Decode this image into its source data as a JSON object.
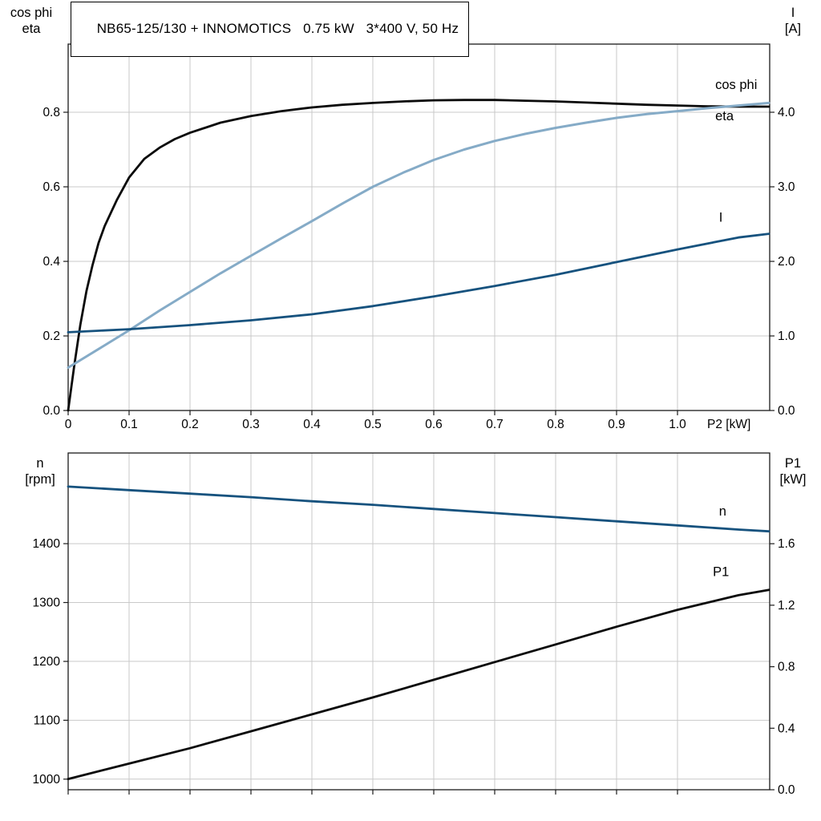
{
  "title": "NB65-125/130 + INNOMOTICS   0.75 kW   3*400 V, 50 Hz",
  "colors": {
    "black": "#0a0a0a",
    "light_blue": "#85abc7",
    "dark_blue": "#16527e",
    "grid": "#c9c9c9",
    "axis": "#1a1a1a"
  },
  "chart_data": [
    {
      "type": "line",
      "title": "NB65-125/130 + INNOMOTICS   0.75 kW   3*400 V, 50 Hz",
      "x_axis_label": "P2 [kW]",
      "x_range": [
        0,
        1.1513
      ],
      "x_ticks": [
        {
          "v": 0,
          "label": "0"
        },
        {
          "v": 0.1,
          "label": "0.1"
        },
        {
          "v": 0.2,
          "label": "0.2"
        },
        {
          "v": 0.3,
          "label": "0.3"
        },
        {
          "v": 0.4,
          "label": "0.4"
        },
        {
          "v": 0.5,
          "label": "0.5"
        },
        {
          "v": 0.6,
          "label": "0.6"
        },
        {
          "v": 0.7,
          "label": "0.7"
        },
        {
          "v": 0.8,
          "label": "0.8"
        },
        {
          "v": 0.9,
          "label": "0.9"
        },
        {
          "v": 1.0,
          "label": "1.0"
        }
      ],
      "left_axis": {
        "corner_label_lines": [
          "cos phi",
          "eta"
        ],
        "range": [
          0,
          0.9828
        ],
        "ticks": [
          {
            "v": 0.0,
            "label": "0.0"
          },
          {
            "v": 0.2,
            "label": "0.2"
          },
          {
            "v": 0.4,
            "label": "0.4"
          },
          {
            "v": 0.6,
            "label": "0.6"
          },
          {
            "v": 0.8,
            "label": "0.8"
          }
        ]
      },
      "right_axis": {
        "corner_label_lines": [
          "I",
          "[A]"
        ],
        "range": [
          0,
          4.914
        ],
        "ticks": [
          {
            "v": 0.0,
            "label": "0.0"
          },
          {
            "v": 1.0,
            "label": "1.0"
          },
          {
            "v": 2.0,
            "label": "2.0"
          },
          {
            "v": 3.0,
            "label": "3.0"
          },
          {
            "v": 4.0,
            "label": "4.0"
          }
        ]
      },
      "series": [
        {
          "name": "eta",
          "axis": "left",
          "color": "black",
          "width": 2.8,
          "x": [
            0,
            0.01,
            0.02,
            0.03,
            0.04,
            0.05,
            0.06,
            0.08,
            0.1,
            0.125,
            0.15,
            0.175,
            0.2,
            0.25,
            0.3,
            0.35,
            0.4,
            0.45,
            0.5,
            0.55,
            0.6,
            0.65,
            0.7,
            0.75,
            0.8,
            0.85,
            0.9,
            0.95,
            1.0,
            1.05,
            1.1,
            1.15
          ],
          "y": [
            0,
            0.12,
            0.23,
            0.32,
            0.39,
            0.45,
            0.495,
            0.565,
            0.625,
            0.675,
            0.705,
            0.728,
            0.745,
            0.772,
            0.79,
            0.803,
            0.813,
            0.82,
            0.825,
            0.829,
            0.832,
            0.833,
            0.833,
            0.831,
            0.829,
            0.826,
            0.823,
            0.82,
            0.818,
            0.816,
            0.815,
            0.815
          ]
        },
        {
          "name": "cos-phi",
          "axis": "left",
          "color": "light_blue",
          "width": 3,
          "x": [
            0,
            0.05,
            0.1,
            0.15,
            0.2,
            0.25,
            0.3,
            0.35,
            0.4,
            0.45,
            0.5,
            0.55,
            0.6,
            0.65,
            0.7,
            0.75,
            0.8,
            0.85,
            0.9,
            0.95,
            1.0,
            1.05,
            1.1,
            1.15
          ],
          "y": [
            0.115,
            0.165,
            0.215,
            0.268,
            0.318,
            0.368,
            0.415,
            0.462,
            0.508,
            0.555,
            0.6,
            0.638,
            0.672,
            0.7,
            0.723,
            0.742,
            0.758,
            0.772,
            0.785,
            0.795,
            0.803,
            0.811,
            0.818,
            0.825
          ]
        },
        {
          "name": "current",
          "axis": "right",
          "color": "dark_blue",
          "width": 2.8,
          "x": [
            0,
            0.1,
            0.2,
            0.3,
            0.4,
            0.5,
            0.6,
            0.7,
            0.8,
            0.9,
            1.0,
            1.1,
            1.15
          ],
          "y": [
            1.05,
            1.09,
            1.145,
            1.21,
            1.29,
            1.4,
            1.53,
            1.67,
            1.82,
            1.99,
            2.16,
            2.32,
            2.37
          ]
        }
      ],
      "annotations": [
        {
          "text": "cos phi",
          "x": 1.062,
          "y": 0.862,
          "axis": "left",
          "color": "light_blue"
        },
        {
          "text": "eta",
          "x": 1.062,
          "y": 0.778,
          "axis": "left",
          "color": "black"
        },
        {
          "text": "I",
          "x": 1.068,
          "y": 2.53,
          "axis": "right",
          "color": "dark_blue"
        }
      ]
    },
    {
      "type": "line",
      "x_range": [
        0,
        1.1513
      ],
      "x_ticks": [
        {
          "v": 0,
          "label": ""
        },
        {
          "v": 0.1,
          "label": ""
        },
        {
          "v": 0.2,
          "label": ""
        },
        {
          "v": 0.3,
          "label": ""
        },
        {
          "v": 0.4,
          "label": ""
        },
        {
          "v": 0.5,
          "label": ""
        },
        {
          "v": 0.6,
          "label": ""
        },
        {
          "v": 0.7,
          "label": ""
        },
        {
          "v": 0.8,
          "label": ""
        },
        {
          "v": 0.9,
          "label": ""
        },
        {
          "v": 1.0,
          "label": ""
        }
      ],
      "left_axis": {
        "corner_label_lines": [
          "n",
          "[rpm]"
        ],
        "range": [
          982,
          1554
        ],
        "ticks": [
          {
            "v": 1000,
            "label": "1000"
          },
          {
            "v": 1100,
            "label": "1100"
          },
          {
            "v": 1200,
            "label": "1200"
          },
          {
            "v": 1300,
            "label": "1300"
          },
          {
            "v": 1400,
            "label": "1400"
          }
        ]
      },
      "right_axis": {
        "corner_label_lines": [
          "P1",
          "[kW]"
        ],
        "range": [
          0,
          2.19
        ],
        "ticks": [
          {
            "v": 0.0,
            "label": "0.0"
          },
          {
            "v": 0.4,
            "label": "0.4"
          },
          {
            "v": 0.8,
            "label": "0.8"
          },
          {
            "v": 1.2,
            "label": "1.2"
          },
          {
            "v": 1.6,
            "label": "1.6"
          }
        ]
      },
      "series": [
        {
          "name": "speed",
          "axis": "left",
          "color": "dark_blue",
          "width": 2.8,
          "x": [
            0,
            0.1,
            0.2,
            0.3,
            0.4,
            0.5,
            0.6,
            0.7,
            0.8,
            0.9,
            1.0,
            1.1,
            1.15
          ],
          "y": [
            1497,
            1491,
            1485,
            1479,
            1472,
            1466,
            1459,
            1452,
            1445,
            1438,
            1431,
            1424,
            1421
          ]
        },
        {
          "name": "p1",
          "axis": "right",
          "color": "black",
          "width": 2.8,
          "x": [
            0,
            0.1,
            0.2,
            0.3,
            0.4,
            0.5,
            0.6,
            0.7,
            0.8,
            0.9,
            1.0,
            1.1,
            1.15
          ],
          "y": [
            0.07,
            0.17,
            0.27,
            0.38,
            0.49,
            0.6,
            0.715,
            0.83,
            0.945,
            1.06,
            1.17,
            1.265,
            1.3
          ]
        }
      ],
      "annotations": [
        {
          "text": "n",
          "x": 1.068,
          "y": 1448,
          "axis": "left",
          "color": "dark_blue"
        },
        {
          "text": "P1",
          "x": 1.058,
          "y": 1.39,
          "axis": "right",
          "color": "black"
        }
      ]
    }
  ]
}
